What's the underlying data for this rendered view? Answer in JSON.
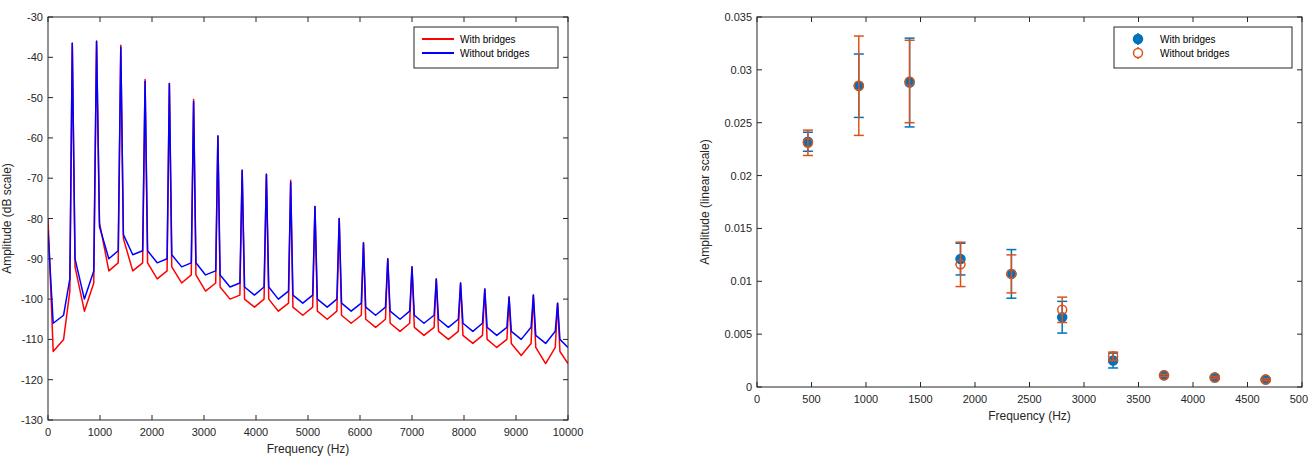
{
  "chart_data": [
    {
      "type": "line",
      "x_label": "Frequency (Hz)",
      "y_label": "Amplitude (dB scale)",
      "xlim": [
        0,
        10000
      ],
      "ylim": [
        -130,
        -30
      ],
      "xticks": [
        0,
        1000,
        2000,
        3000,
        4000,
        5000,
        6000,
        7000,
        8000,
        9000,
        10000
      ],
      "yticks": [
        -130,
        -120,
        -110,
        -100,
        -90,
        -80,
        -70,
        -60,
        -50,
        -40,
        -30
      ],
      "grid": false,
      "legend": "northeast",
      "x": [
        0,
        100,
        300,
        420,
        467,
        520,
        700,
        880,
        934,
        990,
        1170,
        1350,
        1400,
        1450,
        1630,
        1820,
        1867,
        1915,
        2100,
        2290,
        2334,
        2380,
        2570,
        2755,
        2800,
        2845,
        3030,
        3225,
        3267,
        3310,
        3500,
        3690,
        3734,
        3780,
        3970,
        4155,
        4200,
        4245,
        4430,
        4625,
        4667,
        4710,
        4900,
        5090,
        5134,
        5180,
        5370,
        5555,
        5600,
        5645,
        5830,
        6025,
        6067,
        6110,
        6300,
        6490,
        6534,
        6580,
        6770,
        6955,
        7000,
        7045,
        7230,
        7425,
        7467,
        7510,
        7700,
        7890,
        7934,
        7980,
        8170,
        8355,
        8400,
        8445,
        8630,
        8825,
        8867,
        8910,
        9100,
        9290,
        9334,
        9380,
        9570,
        9755,
        9800,
        9845,
        10000
      ],
      "series": [
        {
          "name": "With bridges",
          "color": "#ff0000",
          "line_style": "solid",
          "values": [
            -80,
            -113,
            -110,
            -98,
            -36.5,
            -92,
            -103,
            -96,
            -36,
            -81,
            -93,
            -91,
            -37,
            -85,
            -93,
            -91,
            -45.5,
            -91,
            -95,
            -93,
            -46.5,
            -92,
            -96,
            -94,
            -50.5,
            -94,
            -98,
            -96,
            -59.5,
            -97,
            -100,
            -99,
            -68,
            -100,
            -102,
            -100,
            -69,
            -100,
            -103,
            -101,
            -70.5,
            -102,
            -104,
            -102,
            -77,
            -103,
            -105,
            -103,
            -80,
            -104,
            -106,
            -104,
            -86,
            -105,
            -107,
            -105,
            -90,
            -106,
            -108,
            -106,
            -92,
            -107,
            -109,
            -107,
            -95,
            -108,
            -110,
            -108,
            -96,
            -109,
            -111,
            -109,
            -97.5,
            -110,
            -112,
            -110,
            -99.5,
            -111,
            -114,
            -111,
            -99,
            -112,
            -116,
            -112,
            -101,
            -113,
            -116
          ]
        },
        {
          "name": "Without bridges",
          "color": "#0000ff",
          "line_style": "solid",
          "values": [
            -83,
            -106,
            -104,
            -95,
            -36.5,
            -90,
            -100,
            -93,
            -36,
            -82,
            -90,
            -88,
            -37.5,
            -84,
            -89,
            -88,
            -46,
            -88,
            -91,
            -90,
            -46.5,
            -89,
            -92,
            -91,
            -51,
            -91,
            -94,
            -93,
            -59.5,
            -94,
            -97,
            -96,
            -68,
            -97,
            -99,
            -97,
            -69,
            -97,
            -100,
            -98,
            -71,
            -99,
            -101,
            -99,
            -77,
            -100,
            -102,
            -100,
            -80,
            -101,
            -103,
            -101,
            -86,
            -102,
            -104,
            -102,
            -90,
            -103,
            -105,
            -103,
            -92,
            -104,
            -106,
            -104,
            -95,
            -105,
            -107,
            -105,
            -96,
            -106,
            -108,
            -106,
            -97.5,
            -107,
            -109,
            -107,
            -99.5,
            -108,
            -110,
            -107,
            -99,
            -109,
            -111,
            -108,
            -101,
            -110,
            -112
          ]
        }
      ]
    },
    {
      "type": "scatter",
      "x_label": "Frequency (Hz)",
      "y_label": "Amplitude (linear scale)",
      "xlim": [
        0,
        5000
      ],
      "ylim": [
        0,
        0.035
      ],
      "xticks": [
        0,
        500,
        1000,
        1500,
        2000,
        2500,
        3000,
        3500,
        4000,
        4500,
        5000
      ],
      "yticks": [
        0,
        0.005,
        0.01,
        0.015,
        0.02,
        0.025,
        0.03,
        0.035
      ],
      "grid": false,
      "legend": "northeast",
      "x": [
        467,
        934,
        1400,
        1867,
        2334,
        2800,
        3267,
        3734,
        4200,
        4667
      ],
      "series": [
        {
          "name": "With bridges",
          "color": "#0072bd",
          "marker": "circle",
          "values": [
            0.0232,
            0.0285,
            0.0288,
            0.0121,
            0.0107,
            0.0066,
            0.0025,
            0.0011,
            0.0009,
            0.0007
          ],
          "errors": [
            0.0009,
            0.003,
            0.0042,
            0.0015,
            0.0023,
            0.0015,
            0.0007,
            0.0001,
            0.0001,
            0.0001
          ]
        },
        {
          "name": "Without bridges",
          "color": "#d95319",
          "marker": "circle-open",
          "values": [
            0.0231,
            0.0285,
            0.0289,
            0.0116,
            0.0107,
            0.0073,
            0.0029,
            0.0011,
            0.0009,
            0.0007
          ],
          "errors": [
            0.0012,
            0.0047,
            0.0039,
            0.0021,
            0.0018,
            0.0012,
            0.0004,
            0.0001,
            0.0001,
            0.0001
          ]
        }
      ]
    }
  ]
}
